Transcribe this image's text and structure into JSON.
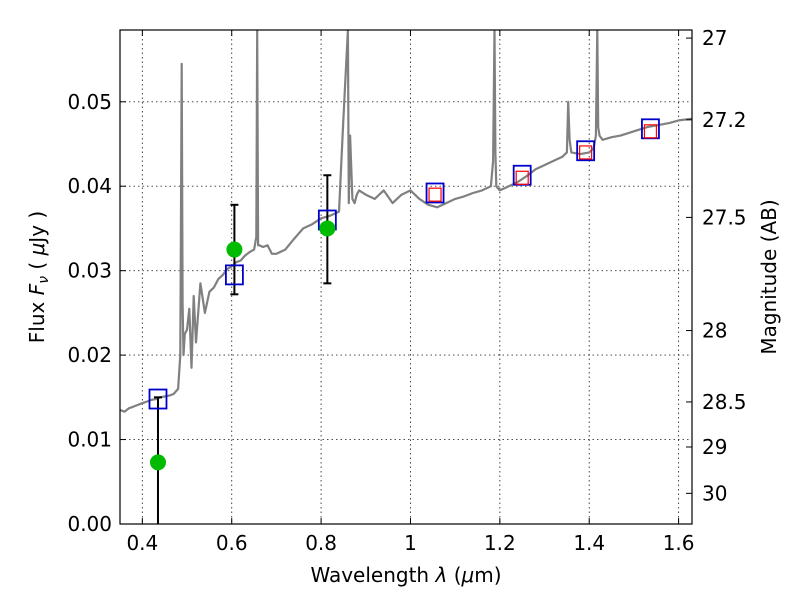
{
  "chart_data": {
    "type": "scatter",
    "xlabel_prefix": "Wavelength",
    "xlabel_symbol": "λ",
    "xlabel_unit_open": "(",
    "xlabel_unit_mu": "μ",
    "xlabel_unit_rest": "m)",
    "ylabel_prefix": "Flux",
    "ylabel_symbol": "F",
    "ylabel_sub": "ν",
    "ylabel_unit_open": "(",
    "ylabel_unit_mu": "μ",
    "ylabel_unit_rest": "Jy )",
    "y2label": "Magnitude (AB)",
    "xlim": [
      0.35,
      1.63
    ],
    "ylim": [
      0.0,
      0.0585
    ],
    "xticks": [
      0.4,
      0.6,
      0.8,
      1.0,
      1.2,
      1.4,
      1.6
    ],
    "xtick_labels": [
      "0.4",
      "0.6",
      "0.8",
      "1",
      "1.2",
      "1.4",
      "1.6"
    ],
    "yticks": [
      0.0,
      0.01,
      0.02,
      0.03,
      0.04,
      0.05
    ],
    "ytick_labels": [
      "0.00",
      "0.01",
      "0.02",
      "0.03",
      "0.04",
      "0.05"
    ],
    "mag_ticks": [
      27,
      27.2,
      27.5,
      28,
      28.5,
      29,
      30
    ],
    "mag_tick_labels": [
      "27",
      "27.2",
      "27.5",
      "28",
      "28.5",
      "29",
      "30"
    ],
    "grid": true,
    "colors": {
      "spectrum": "#808080",
      "model_box": "#0000cc",
      "obs_box": "#ff0000",
      "detection": "#00bb00",
      "errorbar": "#000000"
    },
    "spectrum": {
      "name": "model SED",
      "x": [
        0.35,
        0.36,
        0.37,
        0.38,
        0.39,
        0.4,
        0.41,
        0.42,
        0.43,
        0.44,
        0.45,
        0.46,
        0.47,
        0.48,
        0.485,
        0.488,
        0.49,
        0.492,
        0.495,
        0.5,
        0.505,
        0.51,
        0.515,
        0.52,
        0.53,
        0.54,
        0.55,
        0.56,
        0.57,
        0.58,
        0.59,
        0.6,
        0.61,
        0.62,
        0.63,
        0.64,
        0.65,
        0.655,
        0.657,
        0.659,
        0.662,
        0.67,
        0.68,
        0.69,
        0.7,
        0.72,
        0.74,
        0.76,
        0.78,
        0.8,
        0.82,
        0.84,
        0.85,
        0.86,
        0.862,
        0.865,
        0.87,
        0.875,
        0.88,
        0.885,
        0.9,
        0.92,
        0.94,
        0.96,
        0.98,
        1.0,
        1.02,
        1.04,
        1.06,
        1.08,
        1.1,
        1.12,
        1.14,
        1.16,
        1.18,
        1.185,
        1.188,
        1.19,
        1.192,
        1.195,
        1.2,
        1.22,
        1.24,
        1.26,
        1.28,
        1.3,
        1.32,
        1.34,
        1.35,
        1.353,
        1.356,
        1.36,
        1.38,
        1.4,
        1.41,
        1.415,
        1.418,
        1.42,
        1.423,
        1.43,
        1.45,
        1.47,
        1.5,
        1.53,
        1.55,
        1.58,
        1.6,
        1.63
      ],
      "y": [
        0.0135,
        0.0133,
        0.0137,
        0.0139,
        0.0141,
        0.0143,
        0.0145,
        0.0147,
        0.0148,
        0.015,
        0.0151,
        0.0152,
        0.0154,
        0.016,
        0.02,
        0.0545,
        0.026,
        0.02,
        0.0225,
        0.023,
        0.0255,
        0.0185,
        0.027,
        0.0215,
        0.0285,
        0.025,
        0.0275,
        0.028,
        0.029,
        0.0295,
        0.0302,
        0.0305,
        0.031,
        0.0312,
        0.0318,
        0.0322,
        0.0325,
        0.034,
        0.0585,
        0.033,
        0.033,
        0.0328,
        0.033,
        0.032,
        0.032,
        0.0325,
        0.0338,
        0.035,
        0.0355,
        0.0362,
        0.0365,
        0.037,
        0.048,
        0.0585,
        0.038,
        0.046,
        0.0385,
        0.038,
        0.039,
        0.0395,
        0.039,
        0.0385,
        0.0395,
        0.038,
        0.039,
        0.0395,
        0.0385,
        0.0378,
        0.0375,
        0.038,
        0.0385,
        0.0388,
        0.0392,
        0.0395,
        0.04,
        0.043,
        0.0585,
        0.044,
        0.04,
        0.0398,
        0.0395,
        0.04,
        0.0405,
        0.0412,
        0.042,
        0.0425,
        0.043,
        0.0435,
        0.044,
        0.05,
        0.0455,
        0.044,
        0.0438,
        0.044,
        0.0445,
        0.046,
        0.0585,
        0.047,
        0.046,
        0.0455,
        0.0458,
        0.046,
        0.0465,
        0.047,
        0.0472,
        0.0475,
        0.0478,
        0.048
      ]
    },
    "model_photometry": {
      "name": "model broadband flux",
      "x": [
        0.435,
        0.606,
        0.814,
        1.055,
        1.25,
        1.392,
        1.537
      ],
      "y": [
        0.0148,
        0.0295,
        0.036,
        0.0392,
        0.0413,
        0.0442,
        0.0468
      ]
    },
    "observed_photometry": {
      "name": "observed flux",
      "x": [
        1.055,
        1.25,
        1.392,
        1.537
      ],
      "y": [
        0.039,
        0.041,
        0.044,
        0.0465
      ]
    },
    "detections": {
      "name": "optical detections",
      "x": [
        0.435,
        0.606,
        0.814
      ],
      "y": [
        0.0073,
        0.0325,
        0.035
      ],
      "yerr_low": [
        0.0073,
        0.0053,
        0.0065
      ],
      "yerr_high": [
        0.0077,
        0.0053,
        0.0063
      ]
    }
  }
}
